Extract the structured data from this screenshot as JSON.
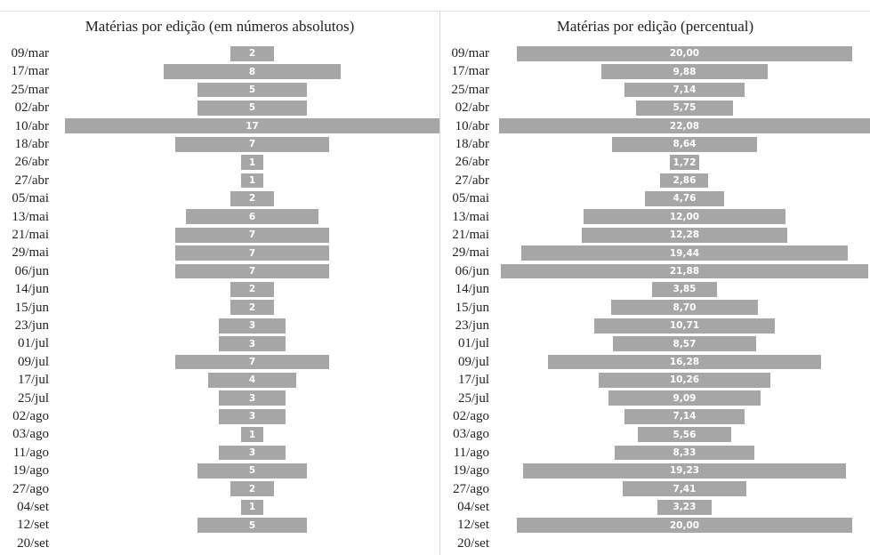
{
  "chart_data": [
    {
      "type": "bar",
      "orientation": "horizontal",
      "title": "Matérias por edição (em números absolutos)",
      "categories": [
        "09/mar",
        "17/mar",
        "25/mar",
        "02/abr",
        "10/abr",
        "18/abr",
        "26/abr",
        "27/abr",
        "05/mai",
        "13/mai",
        "21/mai",
        "29/mai",
        "06/jun",
        "14/jun",
        "15/jun",
        "23/jun",
        "01/jul",
        "09/jul",
        "17/jul",
        "25/jul",
        "02/ago",
        "03/ago",
        "11/ago",
        "19/ago",
        "27/ago",
        "04/set",
        "12/set",
        "20/set"
      ],
      "values": [
        2,
        8,
        5,
        5,
        17,
        7,
        1,
        1,
        2,
        6,
        7,
        7,
        7,
        2,
        2,
        3,
        3,
        7,
        4,
        3,
        3,
        1,
        3,
        5,
        2,
        1,
        5,
        null
      ],
      "labels": [
        "2",
        "8",
        "5",
        "5",
        "17",
        "7",
        "1",
        "1",
        "2",
        "6",
        "7",
        "7",
        "7",
        "2",
        "2",
        "3",
        "3",
        "7",
        "4",
        "3",
        "3",
        "1",
        "3",
        "5",
        "2",
        "1",
        "5",
        ""
      ],
      "xlim": [
        0,
        17
      ],
      "bar_color": "#a6a6a6",
      "label_color": "#ffffff",
      "grid": false
    },
    {
      "type": "bar",
      "orientation": "horizontal",
      "title": "Matérias por edição (percentual)",
      "categories": [
        "09/mar",
        "17/mar",
        "25/mar",
        "02/abr",
        "10/abr",
        "18/abr",
        "26/abr",
        "27/abr",
        "05/mai",
        "13/mai",
        "21/mai",
        "29/mai",
        "06/jun",
        "14/jun",
        "15/jun",
        "23/jun",
        "01/jul",
        "09/jul",
        "17/jul",
        "25/jul",
        "02/ago",
        "03/ago",
        "11/ago",
        "19/ago",
        "27/ago",
        "04/set",
        "12/set",
        "20/set"
      ],
      "values": [
        20.0,
        9.88,
        7.14,
        5.75,
        22.08,
        8.64,
        1.72,
        2.86,
        4.76,
        12.0,
        12.28,
        19.44,
        21.88,
        3.85,
        8.7,
        10.71,
        8.57,
        16.28,
        10.26,
        9.09,
        7.14,
        5.56,
        8.33,
        19.23,
        7.41,
        3.23,
        20.0,
        null
      ],
      "labels": [
        "20,00",
        "9,88",
        "7,14",
        "5,75",
        "22,08",
        "8,64",
        "1,72",
        "2,86",
        "4,76",
        "12,00",
        "12,28",
        "19,44",
        "21,88",
        "3,85",
        "8,70",
        "10,71",
        "8,57",
        "16,28",
        "10,26",
        "9,09",
        "7,14",
        "5,56",
        "8,33",
        "19,23",
        "7,41",
        "3,23",
        "20,00",
        ""
      ],
      "xlim": [
        0,
        22.08
      ],
      "bar_color": "#a6a6a6",
      "label_color": "#ffffff",
      "grid": false
    }
  ]
}
